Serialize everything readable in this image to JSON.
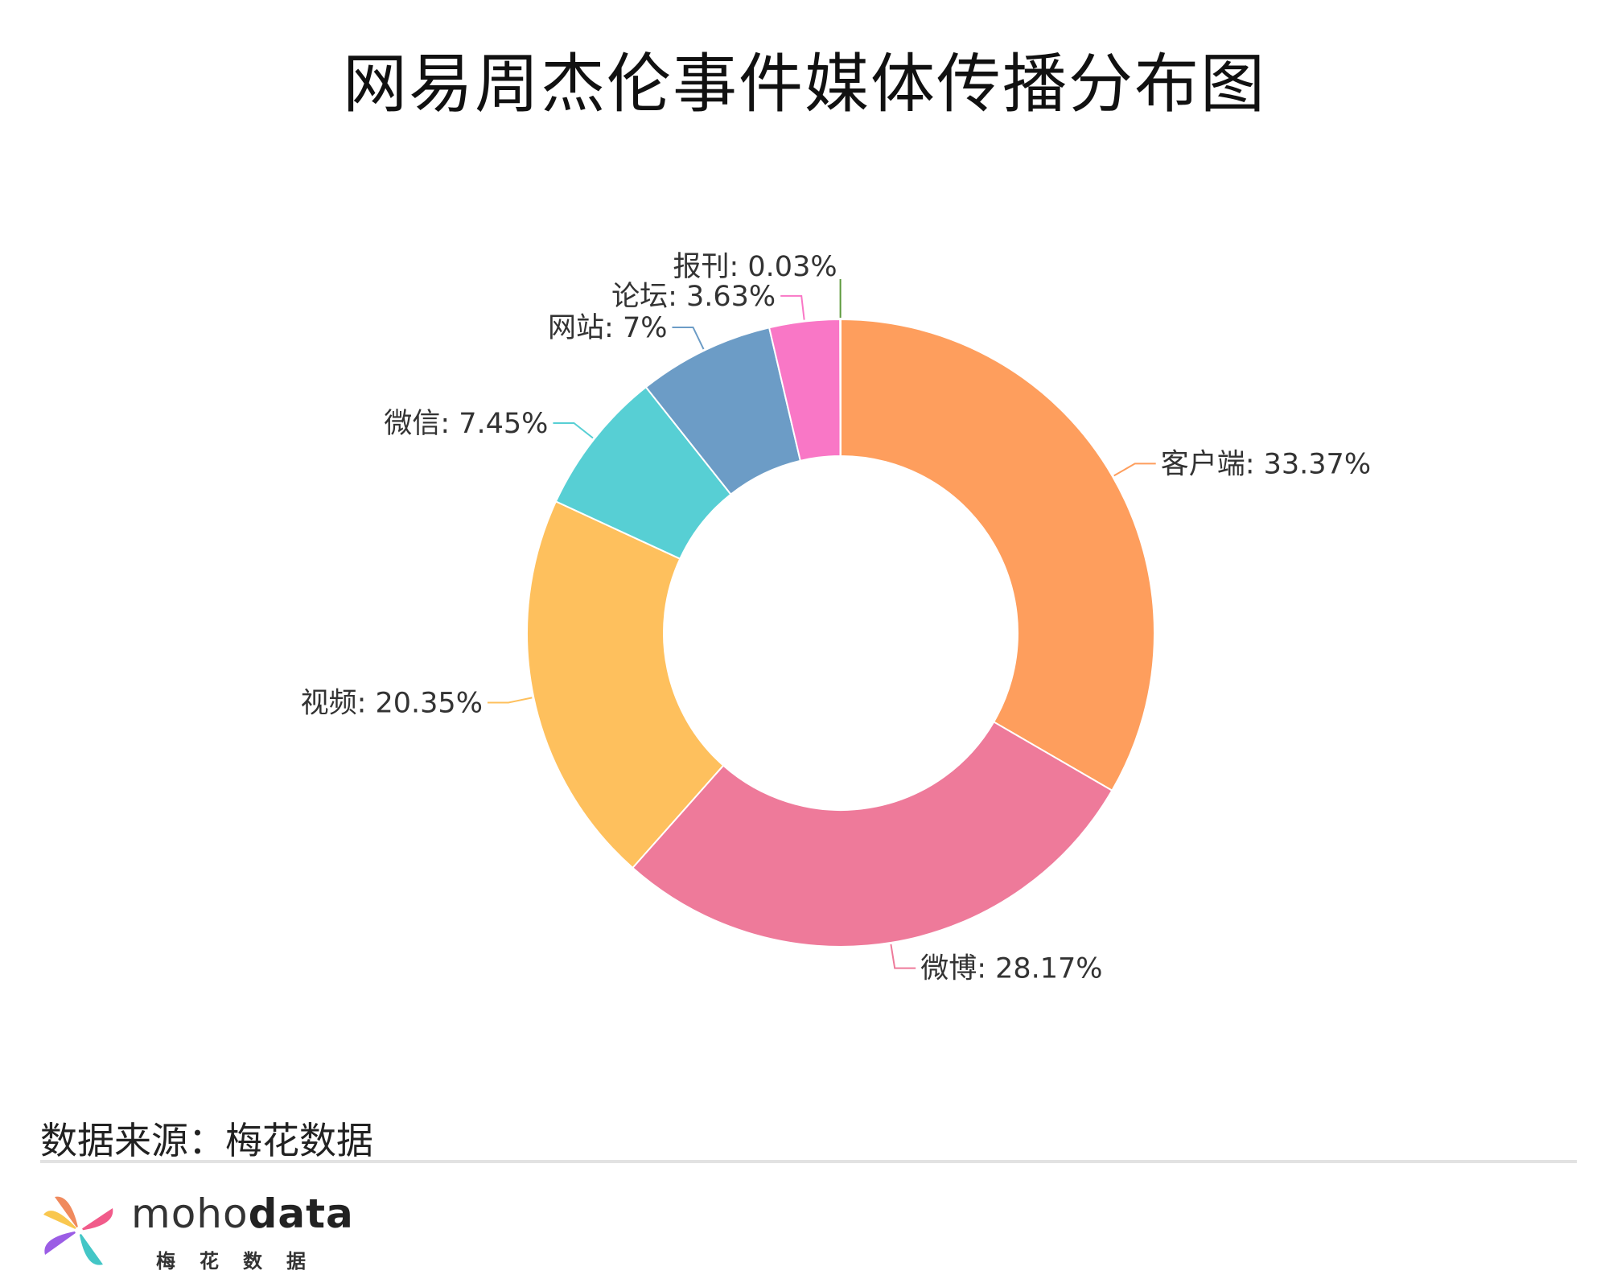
{
  "title": "网易周杰伦事件媒体传播分布图",
  "chart_data": {
    "type": "pie",
    "style": "donut",
    "title": "网易周杰伦事件媒体传播分布图",
    "slices": [
      {
        "name": "客户端",
        "value": 33.37,
        "label": "客户端: 33.37%",
        "color": "#FE9E5D"
      },
      {
        "name": "微博",
        "value": 28.17,
        "label": "微博: 28.17%",
        "color": "#EE7A9A"
      },
      {
        "name": "视频",
        "value": 20.35,
        "label": "视频: 20.35%",
        "color": "#FEC05D"
      },
      {
        "name": "微信",
        "value": 7.45,
        "label": "微信: 7.45%",
        "color": "#57CFD4"
      },
      {
        "name": "网站",
        "value": 7,
        "label": "网站: 7%",
        "color": "#6C9CC6"
      },
      {
        "name": "论坛",
        "value": 3.63,
        "label": "论坛: 3.63%",
        "color": "#F977C6"
      },
      {
        "name": "报刊",
        "value": 0.03,
        "label": "报刊: 0.03%",
        "color": "#5C9A3C"
      }
    ],
    "legend": "none"
  },
  "footer": {
    "source": "数据来源：梅花数据",
    "brand_light": "moho",
    "brand_bold": "data",
    "brand_sub": "梅花数据"
  },
  "logo": {
    "icon": "pinwheel-logo-icon",
    "colors": [
      "#F08A5D",
      "#F9C74F",
      "#43C6C6",
      "#9B5DE5",
      "#F15B8A"
    ]
  }
}
